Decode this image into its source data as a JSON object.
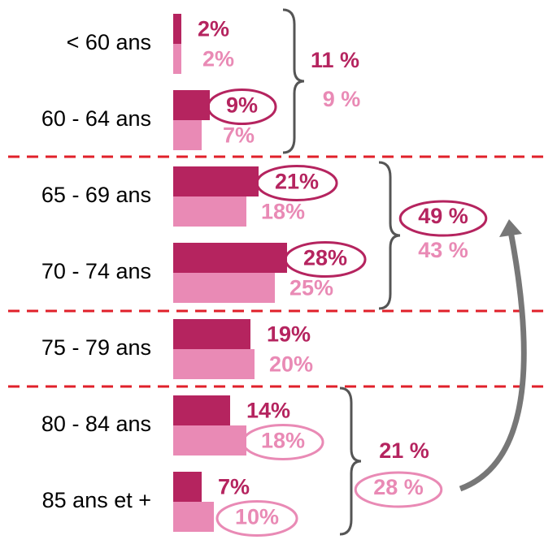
{
  "chart_data": {
    "type": "barh",
    "categories": [
      "< 60 ans",
      "60 - 64 ans",
      "65 - 69 ans",
      "70 - 74 ans",
      "75 - 79 ans",
      "80 - 84 ans",
      "85 ans et +"
    ],
    "series": [
      {
        "color": "#b5245f",
        "values": [
          2,
          9,
          21,
          28,
          19,
          14,
          7
        ],
        "value_labels": [
          "2%",
          "9%",
          "21%",
          "28%",
          "19%",
          "14%",
          "7%"
        ]
      },
      {
        "color": "#e98ab5",
        "values": [
          2,
          7,
          18,
          25,
          20,
          18,
          10
        ],
        "value_labels": [
          "2%",
          "7%",
          "18%",
          "25%",
          "20%",
          "18%",
          "10%"
        ]
      }
    ],
    "xlim": [
      0,
      90
    ],
    "groups": [
      {
        "labels": [
          "11 %",
          "9 %"
        ]
      },
      {
        "labels": [
          "49 %",
          "43 %"
        ]
      },
      {
        "labels": [
          "21 %",
          "28 %"
        ]
      }
    ]
  }
}
